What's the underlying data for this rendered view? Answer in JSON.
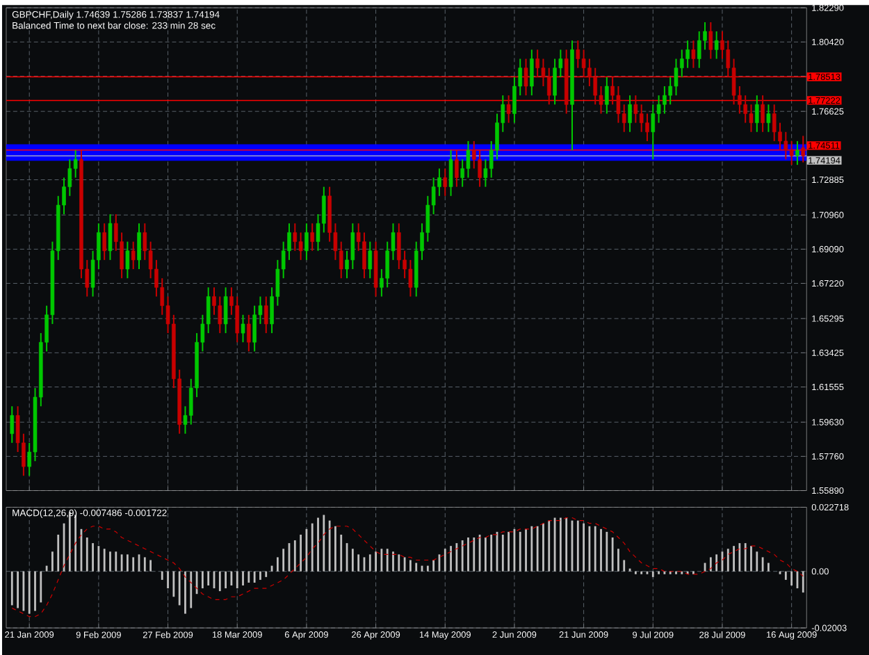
{
  "chart_data": [
    {
      "type": "candlestick",
      "title": "GBPCHF,Daily  1.74639 1.75286 1.73837 1.74194",
      "subtitle": "Balanced Time to next bar close: 233 min 28 sec",
      "categories": [
        null,
        null,
        null,
        null,
        null,
        null,
        null,
        null,
        null,
        null,
        null,
        null,
        null,
        null,
        null,
        null,
        null,
        null,
        null,
        null,
        null,
        null,
        null,
        null,
        null,
        null,
        null,
        null,
        null,
        null,
        null,
        null,
        null,
        null,
        null,
        null,
        null,
        null,
        null,
        null,
        null,
        null,
        null,
        null,
        null,
        null,
        null,
        null,
        null,
        null,
        null,
        null,
        null,
        null,
        null,
        null,
        null,
        null,
        null,
        null,
        null,
        null,
        null,
        null,
        null,
        null,
        null,
        null,
        null,
        null,
        null,
        null,
        null,
        null,
        null,
        null,
        null,
        null,
        null,
        null,
        null,
        null,
        null,
        null,
        null,
        null,
        null,
        null,
        null,
        null,
        null,
        null,
        null,
        null,
        null,
        null,
        null,
        null,
        null,
        null,
        null,
        null,
        null,
        null,
        null,
        null,
        null,
        null,
        null,
        null,
        null,
        null,
        null,
        null,
        null,
        null,
        null,
        null,
        null,
        null,
        null,
        null,
        null,
        null,
        null,
        null,
        null,
        null,
        null,
        null,
        null,
        null,
        null,
        null,
        null,
        null,
        null,
        null
      ],
      "ohlc": [
        [
          1.59,
          1.605,
          1.585,
          1.6
        ],
        [
          1.6,
          1.605,
          1.58,
          1.585
        ],
        [
          1.585,
          1.59,
          1.567,
          1.572
        ],
        [
          1.572,
          1.585,
          1.567,
          1.58
        ],
        [
          1.58,
          1.615,
          1.575,
          1.61
        ],
        [
          1.61,
          1.645,
          1.605,
          1.64
        ],
        [
          1.64,
          1.66,
          1.635,
          1.655
        ],
        [
          1.655,
          1.695,
          1.65,
          1.69
        ],
        [
          1.69,
          1.72,
          1.685,
          1.715
        ],
        [
          1.715,
          1.73,
          1.71,
          1.725
        ],
        [
          1.725,
          1.74,
          1.72,
          1.735
        ],
        [
          1.735,
          1.745,
          1.73,
          1.74
        ],
        [
          1.74,
          1.745,
          1.675,
          1.68
        ],
        [
          1.68,
          1.685,
          1.665,
          1.67
        ],
        [
          1.67,
          1.69,
          1.665,
          1.685
        ],
        [
          1.685,
          1.705,
          1.68,
          1.7
        ],
        [
          1.7,
          1.705,
          1.685,
          1.69
        ],
        [
          1.69,
          1.71,
          1.685,
          1.705
        ],
        [
          1.705,
          1.71,
          1.69,
          1.695
        ],
        [
          1.695,
          1.7,
          1.675,
          1.68
        ],
        [
          1.68,
          1.695,
          1.675,
          1.69
        ],
        [
          1.69,
          1.695,
          1.68,
          1.685
        ],
        [
          1.685,
          1.705,
          1.68,
          1.7
        ],
        [
          1.7,
          1.705,
          1.685,
          1.69
        ],
        [
          1.69,
          1.695,
          1.675,
          1.68
        ],
        [
          1.68,
          1.685,
          1.665,
          1.67
        ],
        [
          1.67,
          1.675,
          1.655,
          1.66
        ],
        [
          1.66,
          1.665,
          1.645,
          1.65
        ],
        [
          1.65,
          1.655,
          1.615,
          1.62
        ],
        [
          1.62,
          1.625,
          1.59,
          1.595
        ],
        [
          1.595,
          1.605,
          1.59,
          1.6
        ],
        [
          1.6,
          1.62,
          1.595,
          1.615
        ],
        [
          1.615,
          1.645,
          1.61,
          1.64
        ],
        [
          1.64,
          1.655,
          1.635,
          1.65
        ],
        [
          1.65,
          1.67,
          1.645,
          1.665
        ],
        [
          1.665,
          1.67,
          1.655,
          1.66
        ],
        [
          1.66,
          1.665,
          1.645,
          1.65
        ],
        [
          1.65,
          1.67,
          1.645,
          1.665
        ],
        [
          1.665,
          1.67,
          1.655,
          1.66
        ],
        [
          1.66,
          1.665,
          1.64,
          1.645
        ],
        [
          1.645,
          1.655,
          1.64,
          1.65
        ],
        [
          1.65,
          1.655,
          1.635,
          1.64
        ],
        [
          1.64,
          1.66,
          1.635,
          1.655
        ],
        [
          1.655,
          1.665,
          1.65,
          1.66
        ],
        [
          1.66,
          1.665,
          1.645,
          1.65
        ],
        [
          1.65,
          1.67,
          1.645,
          1.665
        ],
        [
          1.665,
          1.685,
          1.66,
          1.68
        ],
        [
          1.68,
          1.695,
          1.675,
          1.69
        ],
        [
          1.69,
          1.705,
          1.685,
          1.7
        ],
        [
          1.7,
          1.705,
          1.69,
          1.695
        ],
        [
          1.695,
          1.7,
          1.685,
          1.69
        ],
        [
          1.69,
          1.705,
          1.685,
          1.7
        ],
        [
          1.7,
          1.705,
          1.69,
          1.695
        ],
        [
          1.695,
          1.71,
          1.69,
          1.705
        ],
        [
          1.705,
          1.725,
          1.7,
          1.72
        ],
        [
          1.72,
          1.725,
          1.695,
          1.7
        ],
        [
          1.7,
          1.705,
          1.685,
          1.69
        ],
        [
          1.69,
          1.695,
          1.675,
          1.68
        ],
        [
          1.68,
          1.69,
          1.675,
          1.685
        ],
        [
          1.685,
          1.705,
          1.68,
          1.7
        ],
        [
          1.7,
          1.705,
          1.69,
          1.695
        ],
        [
          1.695,
          1.7,
          1.675,
          1.68
        ],
        [
          1.68,
          1.695,
          1.675,
          1.69
        ],
        [
          1.69,
          1.695,
          1.665,
          1.67
        ],
        [
          1.67,
          1.68,
          1.665,
          1.675
        ],
        [
          1.675,
          1.695,
          1.67,
          1.69
        ],
        [
          1.69,
          1.705,
          1.685,
          1.7
        ],
        [
          1.7,
          1.705,
          1.68,
          1.685
        ],
        [
          1.685,
          1.69,
          1.675,
          1.68
        ],
        [
          1.68,
          1.685,
          1.665,
          1.67
        ],
        [
          1.67,
          1.695,
          1.665,
          1.69
        ],
        [
          1.69,
          1.705,
          1.685,
          1.7
        ],
        [
          1.7,
          1.72,
          1.695,
          1.715
        ],
        [
          1.715,
          1.73,
          1.71,
          1.725
        ],
        [
          1.725,
          1.735,
          1.72,
          1.73
        ],
        [
          1.73,
          1.735,
          1.72,
          1.725
        ],
        [
          1.725,
          1.745,
          1.72,
          1.74
        ],
        [
          1.74,
          1.745,
          1.725,
          1.73
        ],
        [
          1.73,
          1.74,
          1.725,
          1.735
        ],
        [
          1.735,
          1.75,
          1.73,
          1.745
        ],
        [
          1.745,
          1.75,
          1.735,
          1.74
        ],
        [
          1.74,
          1.745,
          1.725,
          1.73
        ],
        [
          1.73,
          1.74,
          1.725,
          1.735
        ],
        [
          1.735,
          1.75,
          1.73,
          1.745
        ],
        [
          1.745,
          1.765,
          1.74,
          1.76
        ],
        [
          1.76,
          1.775,
          1.755,
          1.77
        ],
        [
          1.77,
          1.775,
          1.76,
          1.765
        ],
        [
          1.765,
          1.785,
          1.76,
          1.78
        ],
        [
          1.78,
          1.795,
          1.775,
          1.79
        ],
        [
          1.79,
          1.795,
          1.775,
          1.78
        ],
        [
          1.78,
          1.8,
          1.775,
          1.795
        ],
        [
          1.795,
          1.8,
          1.785,
          1.79
        ],
        [
          1.79,
          1.795,
          1.78,
          1.785
        ],
        [
          1.785,
          1.79,
          1.77,
          1.775
        ],
        [
          1.775,
          1.795,
          1.77,
          1.79
        ],
        [
          1.79,
          1.8,
          1.785,
          1.795
        ],
        [
          1.795,
          1.8,
          1.765,
          1.77
        ],
        [
          1.77,
          1.805,
          1.745,
          1.8
        ],
        [
          1.8,
          1.805,
          1.79,
          1.795
        ],
        [
          1.795,
          1.8,
          1.785,
          1.79
        ],
        [
          1.79,
          1.795,
          1.78,
          1.785
        ],
        [
          1.785,
          1.79,
          1.77,
          1.775
        ],
        [
          1.775,
          1.78,
          1.765,
          1.77
        ],
        [
          1.77,
          1.785,
          1.765,
          1.78
        ],
        [
          1.78,
          1.785,
          1.77,
          1.775
        ],
        [
          1.775,
          1.78,
          1.76,
          1.765
        ],
        [
          1.765,
          1.77,
          1.755,
          1.76
        ],
        [
          1.76,
          1.775,
          1.755,
          1.77
        ],
        [
          1.77,
          1.775,
          1.76,
          1.765
        ],
        [
          1.765,
          1.77,
          1.755,
          1.76
        ],
        [
          1.76,
          1.765,
          1.75,
          1.755
        ],
        [
          1.755,
          1.77,
          1.74,
          1.765
        ],
        [
          1.765,
          1.775,
          1.76,
          1.77
        ],
        [
          1.77,
          1.78,
          1.765,
          1.775
        ],
        [
          1.775,
          1.785,
          1.77,
          1.78
        ],
        [
          1.78,
          1.795,
          1.775,
          1.79
        ],
        [
          1.79,
          1.8,
          1.785,
          1.795
        ],
        [
          1.795,
          1.805,
          1.79,
          1.8
        ],
        [
          1.8,
          1.805,
          1.79,
          1.795
        ],
        [
          1.795,
          1.81,
          1.79,
          1.805
        ],
        [
          1.805,
          1.815,
          1.8,
          1.81
        ],
        [
          1.81,
          1.815,
          1.795,
          1.8
        ],
        [
          1.8,
          1.81,
          1.795,
          1.805
        ],
        [
          1.805,
          1.81,
          1.795,
          1.8
        ],
        [
          1.8,
          1.805,
          1.785,
          1.79
        ],
        [
          1.79,
          1.795,
          1.77,
          1.775
        ],
        [
          1.775,
          1.78,
          1.765,
          1.77
        ],
        [
          1.77,
          1.775,
          1.76,
          1.765
        ],
        [
          1.765,
          1.77,
          1.755,
          1.76
        ],
        [
          1.76,
          1.775,
          1.755,
          1.77
        ],
        [
          1.77,
          1.775,
          1.755,
          1.76
        ],
        [
          1.76,
          1.77,
          1.755,
          1.765
        ],
        [
          1.765,
          1.77,
          1.75,
          1.755
        ],
        [
          1.755,
          1.76,
          1.745,
          1.75
        ],
        [
          1.75,
          1.755,
          1.74,
          1.745
        ],
        [
          1.745,
          1.75,
          1.737,
          1.742
        ],
        [
          1.742,
          1.75,
          1.737,
          1.745
        ],
        [
          1.74639,
          1.75286,
          1.73837,
          1.74194
        ]
      ],
      "ylim": [
        1.5589,
        1.8229
      ],
      "yticks": [
        {
          "value": 1.8229,
          "label": "1.82290"
        },
        {
          "value": 1.8042,
          "label": "1.80420"
        },
        {
          "value": 1.7855,
          "label": null
        },
        1.76625,
        {
          "value": 1.74755,
          "label": null
        },
        1.72885,
        {
          "value": 1.7096,
          "label": "1.70960"
        },
        {
          "value": 1.6909,
          "label": "1.69090"
        },
        {
          "value": 1.6722,
          "label": "1.67220"
        },
        1.65295,
        1.63425,
        1.61555,
        {
          "value": 1.5963,
          "label": "1.59630"
        },
        {
          "value": 1.5776,
          "label": "1.57760"
        },
        {
          "value": 1.5589,
          "label": "1.55890"
        }
      ],
      "ref_lines": [
        {
          "axis": "y",
          "value": 1.78513,
          "label": "1.78513",
          "color": "#ff0000"
        },
        {
          "axis": "y",
          "value": 1.77222,
          "label": "1.77222",
          "color": "#ff0000"
        },
        {
          "axis": "y",
          "value": 1.74511,
          "label": "1.74511",
          "color": "#ff0000"
        },
        {
          "axis": "y",
          "value": 1.74194,
          "label": "1.74194",
          "color": "#c0c0c0"
        }
      ],
      "bands": [
        {
          "axis": "y",
          "from": 1.7392,
          "to": 1.7483,
          "color": "#0000ff"
        }
      ],
      "grid": true,
      "tick_labels": "y"
    },
    {
      "type": "bar",
      "title": "MACD(12,26,9) -0.007486 -0.001722",
      "categories": [
        null,
        null,
        null,
        "21 Jan 2009",
        null,
        null,
        null,
        null,
        null,
        null,
        null,
        null,
        null,
        null,
        null,
        "9 Feb 2009",
        null,
        null,
        null,
        null,
        null,
        null,
        null,
        null,
        null,
        null,
        null,
        "27 Feb 2009",
        null,
        null,
        null,
        null,
        null,
        null,
        null,
        null,
        null,
        null,
        null,
        "18 Mar 2009",
        null,
        null,
        null,
        null,
        null,
        null,
        null,
        null,
        null,
        null,
        null,
        "6 Apr 2009",
        null,
        null,
        null,
        null,
        null,
        null,
        null,
        null,
        null,
        null,
        null,
        "26 Apr 2009",
        null,
        null,
        null,
        null,
        null,
        null,
        null,
        null,
        null,
        null,
        null,
        "14 May 2009",
        null,
        null,
        null,
        null,
        null,
        null,
        null,
        null,
        null,
        null,
        null,
        "2 Jun 2009",
        null,
        null,
        null,
        null,
        null,
        null,
        null,
        null,
        null,
        null,
        null,
        "21 Jun 2009",
        null,
        null,
        null,
        null,
        null,
        null,
        null,
        null,
        null,
        null,
        null,
        "9 Jul 2009",
        null,
        null,
        null,
        null,
        null,
        null,
        null,
        null,
        null,
        null,
        null,
        "28 Jul 2009",
        null,
        null,
        null,
        null,
        null,
        null,
        null,
        null,
        null,
        null,
        null,
        "16 Aug 2009",
        null,
        null
      ],
      "series": [
        {
          "type": "bar",
          "color": "#c0c0c0",
          "values": [
            -0.012,
            -0.013,
            -0.014,
            -0.015,
            -0.014,
            -0.011,
            0.002,
            0.007,
            0.013,
            0.017,
            0.021,
            0.02,
            0.015,
            0.012,
            0.01,
            0.009,
            0.008,
            0.007,
            0.007,
            0.006,
            0.006,
            0.005,
            0.006,
            0.005,
            0.004,
            0,
            -0.003,
            -0.006,
            -0.009,
            -0.012,
            -0.015,
            -0.013,
            -0.008,
            -0.006,
            -0.005,
            -0.006,
            -0.007,
            -0.006,
            -0.005,
            -0.006,
            -0.005,
            -0.004,
            -0.004,
            -0.003,
            -0.002,
            0.002,
            0.005,
            0.008,
            0.01,
            0.011,
            0.013,
            0.015,
            0.017,
            0.019,
            0.02,
            0.018,
            0.016,
            0.013,
            0.01,
            0.008,
            0.006,
            0.005,
            0.006,
            0.007,
            0.008,
            0.008,
            0.007,
            0.006,
            0.005,
            0.004,
            0.003,
            0.002,
            0.002,
            0.004,
            0.006,
            0.008,
            0.009,
            0.01,
            0.011,
            0.012,
            0.012,
            0.013,
            0.012,
            0.013,
            0.014,
            0.013,
            0.014,
            0.015,
            0.014,
            0.015,
            0.016,
            0.016,
            0.017,
            0.018,
            0.019,
            0.019,
            0.019,
            0.018,
            0.018,
            0.017,
            0.016,
            0.016,
            0.015,
            0.014,
            0.012,
            0.008,
            0.004,
            0.001,
            -0.001,
            -0.001,
            -0.001,
            -0.002,
            -0.001,
            -0.001,
            -0.001,
            -0.001,
            -0.001,
            -0.001,
            -0.001,
            0,
            0.003,
            0.005,
            0.006,
            0.007,
            0.008,
            0.009,
            0.01,
            0.01,
            0.009,
            0.007,
            0.005,
            0.003,
            0,
            -0.001,
            -0.003,
            -0.005,
            -0.006,
            -0.0075
          ]
        },
        {
          "type": "line",
          "color": "#d00000",
          "line_style": "dashed",
          "values": [
            -0.013,
            -0.014,
            -0.015,
            -0.016,
            -0.016,
            -0.015,
            -0.012,
            -0.008,
            -0.003,
            0.002,
            0.006,
            0.01,
            0.013,
            0.015,
            0.016,
            0.016,
            0.015,
            0.015,
            0.014,
            0.012,
            0.011,
            0.01,
            0.009,
            0.008,
            0.007,
            0.006,
            0.005,
            0.004,
            0.003,
            0.001,
            -0.002,
            -0.004,
            -0.006,
            -0.008,
            -0.009,
            -0.01,
            -0.01,
            -0.01,
            -0.009,
            -0.009,
            -0.008,
            -0.007,
            -0.006,
            -0.006,
            -0.006,
            -0.005,
            -0.004,
            -0.003,
            -0.001,
            0.001,
            0.003,
            0.005,
            0.008,
            0.01,
            0.013,
            0.015,
            0.016,
            0.016,
            0.016,
            0.015,
            0.013,
            0.011,
            0.009,
            0.007,
            0.006,
            0.006,
            0.006,
            0.006,
            0.005,
            0.005,
            0.004,
            0.004,
            0.004,
            0.004,
            0.005,
            0.006,
            0.007,
            0.008,
            0.009,
            0.01,
            0.011,
            0.012,
            0.012,
            0.013,
            0.013,
            0.014,
            0.014,
            0.014,
            0.015,
            0.015,
            0.015,
            0.016,
            0.017,
            0.018,
            0.018,
            0.018,
            0.019,
            0.019,
            0.018,
            0.018,
            0.017,
            0.017,
            0.016,
            0.015,
            0.014,
            0.012,
            0.01,
            0.007,
            0.005,
            0.003,
            0.002,
            0.001,
            0.001,
            0,
            0,
            0,
            0,
            -0.001,
            -0.001,
            -0.001,
            0,
            0.001,
            0.003,
            0.004,
            0.006,
            0.007,
            0.008,
            0.008,
            0.009,
            0.009,
            0.008,
            0.007,
            0.006,
            0.004,
            0.003,
            0.001,
            0,
            -0.0017
          ]
        }
      ],
      "ylim": [
        -0.02003,
        0.022718
      ],
      "yticks": [
        0.022718,
        {
          "value": 0,
          "label": "0.00"
        },
        -0.02003
      ],
      "grid": true
    }
  ]
}
